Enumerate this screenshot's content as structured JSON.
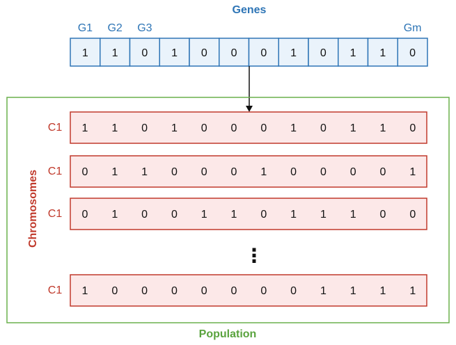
{
  "colors": {
    "blue_stroke": "#2e75b6",
    "blue_fill": "#eaf3fb",
    "blue_text": "#2e75b6",
    "red_stroke": "#c0392b",
    "red_fill": "#fce8e8",
    "red_text": "#c0392b",
    "green_stroke": "#6ab04c",
    "green_text": "#5aa33e",
    "cell_text": "#111111",
    "arrow": "#111111"
  },
  "genes": {
    "title": "Genes",
    "labels": [
      "G1",
      "G2",
      "G3",
      "",
      "",
      "",
      "",
      "",
      "",
      "",
      "",
      "Gm"
    ],
    "values": [
      "1",
      "1",
      "0",
      "1",
      "0",
      "0",
      "0",
      "1",
      "0",
      "1",
      "1",
      "0"
    ]
  },
  "population": {
    "label": "Population",
    "side_label": "Chromosomes",
    "ellipsis": "⋮",
    "chromosomes": [
      {
        "label": "C1",
        "values": [
          "1",
          "1",
          "0",
          "1",
          "0",
          "0",
          "0",
          "1",
          "0",
          "1",
          "1",
          "0"
        ]
      },
      {
        "label": "C1",
        "values": [
          "0",
          "1",
          "1",
          "0",
          "0",
          "0",
          "1",
          "0",
          "0",
          "0",
          "0",
          "1"
        ]
      },
      {
        "label": "C1",
        "values": [
          "0",
          "1",
          "0",
          "0",
          "1",
          "1",
          "0",
          "1",
          "1",
          "1",
          "0",
          "0"
        ]
      },
      {
        "label": "C1",
        "values": [
          "1",
          "0",
          "0",
          "0",
          "0",
          "0",
          "0",
          "0",
          "1",
          "1",
          "1",
          "1"
        ]
      }
    ]
  }
}
